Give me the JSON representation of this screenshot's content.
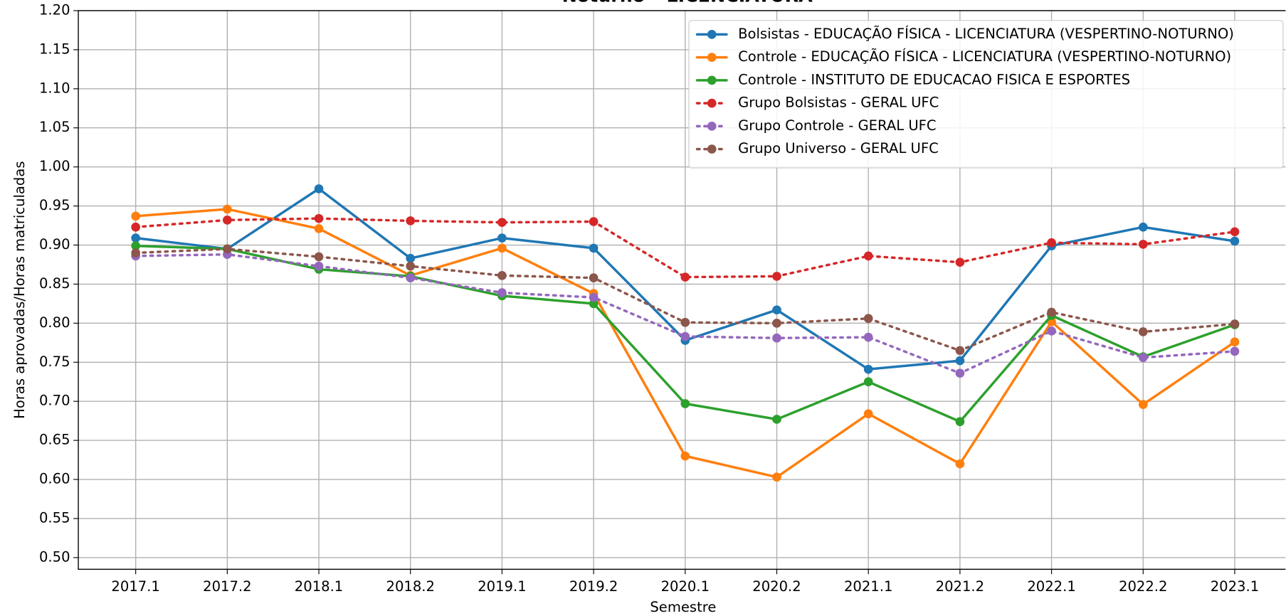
{
  "chart_data": {
    "type": "line",
    "title": "Noturno – LICENCIATURA",
    "x_label": "Semestre",
    "y_label": "Horas aprovadas/Horas matriculadas",
    "categories": [
      "2017.1",
      "2017.2",
      "2018.1",
      "2018.2",
      "2019.1",
      "2019.2",
      "2020.1",
      "2020.2",
      "2021.1",
      "2021.2",
      "2022.1",
      "2022.2",
      "2023.1"
    ],
    "ylim": [
      0.485,
      1.2
    ],
    "yticks": [
      {
        "value": 0.5,
        "label": "0.50"
      },
      {
        "value": 0.55,
        "label": "0.55"
      },
      {
        "value": 0.6,
        "label": "0.60"
      },
      {
        "value": 0.65,
        "label": "0.65"
      },
      {
        "value": 0.7,
        "label": "0.70"
      },
      {
        "value": 0.75,
        "label": "0.75"
      },
      {
        "value": 0.8,
        "label": "0.80"
      },
      {
        "value": 0.85,
        "label": "0.85"
      },
      {
        "value": 0.9,
        "label": "0.90"
      },
      {
        "value": 0.95,
        "label": "0.95"
      },
      {
        "value": 1.0,
        "label": "1.00"
      },
      {
        "value": 1.05,
        "label": "1.05"
      },
      {
        "value": 1.1,
        "label": "1.10"
      },
      {
        "value": 1.15,
        "label": "1.15"
      },
      {
        "value": 1.2,
        "label": "1.20"
      }
    ],
    "grid": true,
    "legend": "upper right",
    "series": [
      {
        "name": "Bolsistas - EDUCAÇÃO FÍSICA - LICENCIATURA (VESPERTINO-NOTURNO)",
        "color": "#1f77b4",
        "linestyle": "solid",
        "values": [
          0.909,
          0.895,
          0.972,
          0.883,
          0.909,
          0.896,
          0.778,
          0.817,
          0.741,
          0.752,
          0.899,
          0.923,
          0.905
        ]
      },
      {
        "name": "Controle - EDUCAÇÃO FÍSICA - LICENCIATURA (VESPERTINO-NOTURNO)",
        "color": "#ff7f0e",
        "linestyle": "solid",
        "values": [
          0.937,
          0.946,
          0.921,
          0.861,
          0.896,
          0.838,
          0.63,
          0.603,
          0.684,
          0.62,
          0.802,
          0.696,
          0.776
        ]
      },
      {
        "name": "Controle - INSTITUTO DE EDUCACAO FISICA E ESPORTES",
        "color": "#2ca02c",
        "linestyle": "solid",
        "values": [
          0.899,
          0.895,
          0.869,
          0.86,
          0.835,
          0.825,
          0.697,
          0.677,
          0.725,
          0.674,
          0.81,
          0.757,
          0.798
        ]
      },
      {
        "name": "Grupo Bolsistas - GERAL UFC",
        "color": "#d62728",
        "linestyle": "dotted",
        "values": [
          0.923,
          0.932,
          0.934,
          0.931,
          0.929,
          0.93,
          0.859,
          0.86,
          0.886,
          0.878,
          0.903,
          0.901,
          0.917
        ]
      },
      {
        "name": "Grupo Controle - GERAL UFC",
        "color": "#9467bd",
        "linestyle": "dotted",
        "values": [
          0.886,
          0.888,
          0.873,
          0.858,
          0.839,
          0.833,
          0.783,
          0.781,
          0.782,
          0.736,
          0.79,
          0.756,
          0.764
        ]
      },
      {
        "name": "Grupo Universo - GERAL UFC",
        "color": "#8c564b",
        "linestyle": "dotted",
        "values": [
          0.89,
          0.895,
          0.885,
          0.873,
          0.861,
          0.858,
          0.801,
          0.8,
          0.806,
          0.765,
          0.814,
          0.789,
          0.799
        ]
      }
    ]
  }
}
